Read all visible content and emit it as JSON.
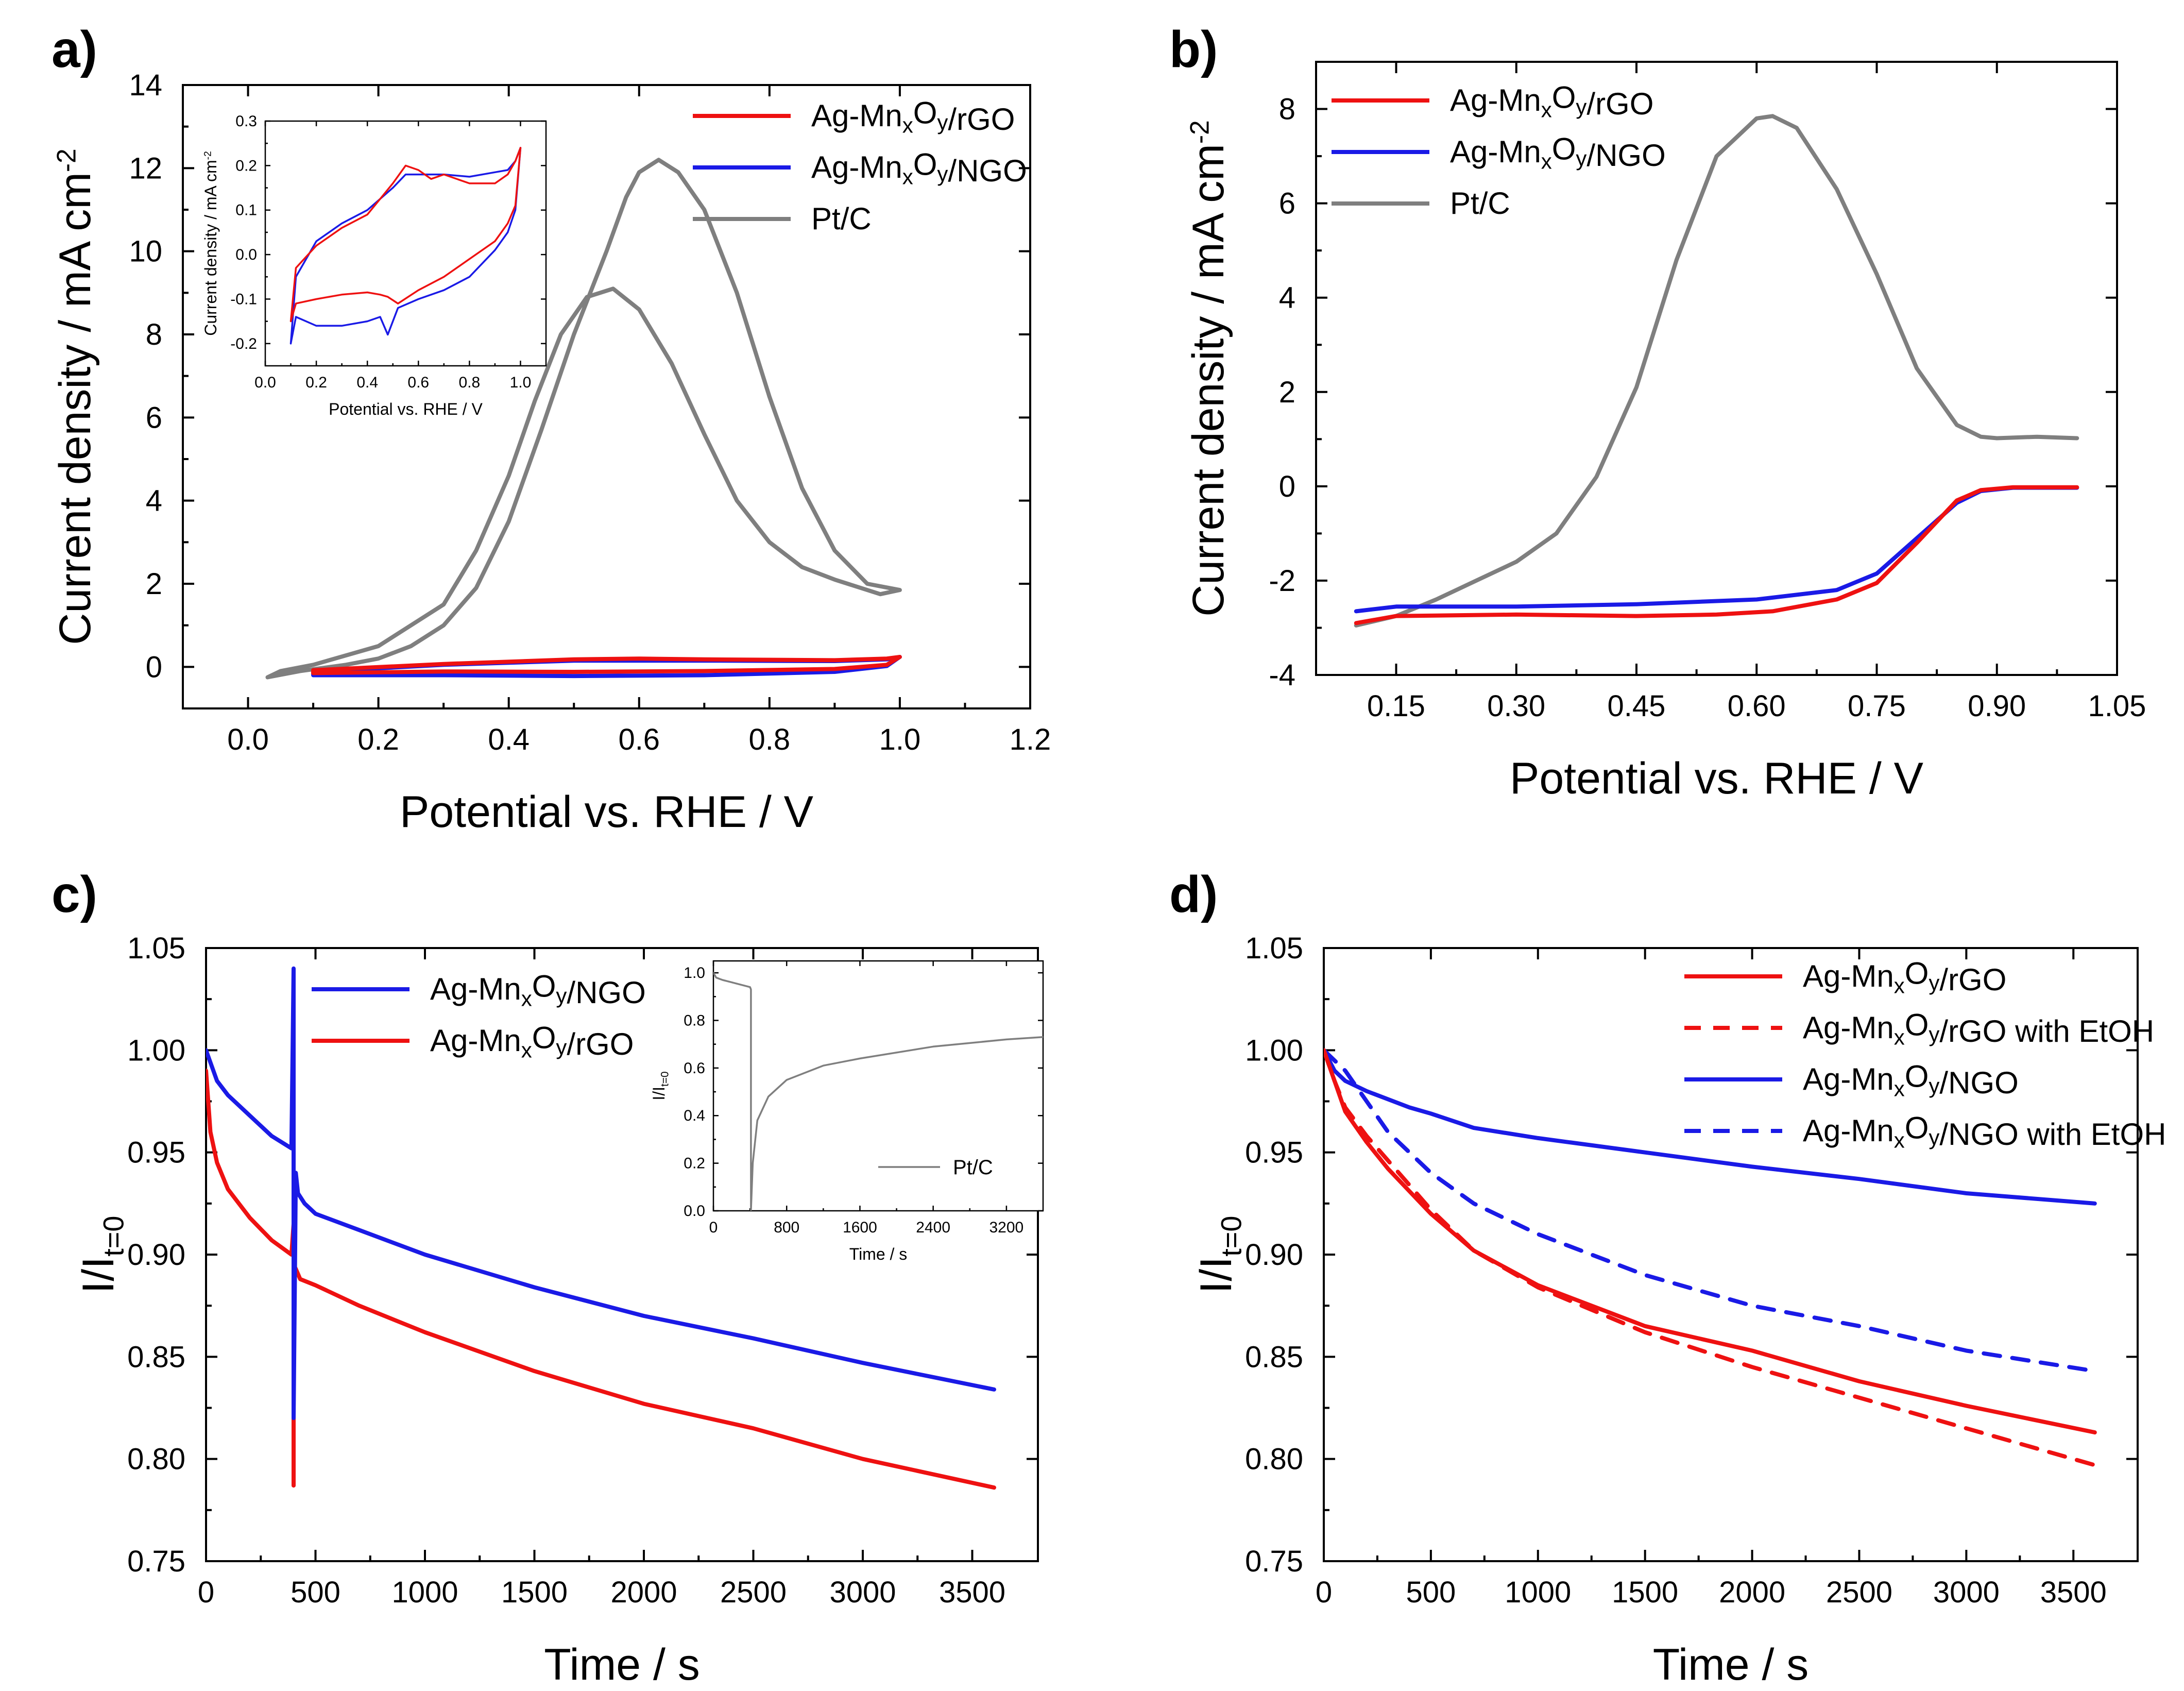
{
  "colors": {
    "red": "#ee1111",
    "blue": "#1a1ae6",
    "gray": "#7f7f7f",
    "axis": "#000000"
  },
  "chart_data": [
    {
      "id": "a",
      "panel_label": "a)",
      "type": "line",
      "xlabel": "Potential vs. RHE  /  V",
      "ylabel": "Current density  /  mA cm",
      "ylabel_sup": "-2",
      "xlim": [
        -0.1,
        1.2
      ],
      "ylim": [
        -1,
        14
      ],
      "xticks": [
        "0.0",
        "0.2",
        "0.4",
        "0.6",
        "0.8",
        "1.0",
        "1.2"
      ],
      "yticks": [
        "0",
        "2",
        "4",
        "6",
        "8",
        "10",
        "12",
        "14"
      ],
      "legend": [
        {
          "label": "Ag-MnxOy/rGO",
          "color": "red",
          "dash": "solid"
        },
        {
          "label": "Ag-MnxOy/NGO",
          "color": "blue",
          "dash": "solid"
        },
        {
          "label": "Pt/C",
          "color": "gray",
          "dash": "solid"
        }
      ],
      "series": [
        {
          "name": "Pt/C",
          "color": "gray",
          "dash": "solid",
          "closed": true,
          "x": [
            0.03,
            0.08,
            0.15,
            0.2,
            0.25,
            0.3,
            0.35,
            0.4,
            0.45,
            0.5,
            0.55,
            0.58,
            0.6,
            0.63,
            0.66,
            0.7,
            0.75,
            0.8,
            0.85,
            0.9,
            0.95,
            1.0,
            0.97,
            0.9,
            0.85,
            0.8,
            0.75,
            0.7,
            0.65,
            0.6,
            0.56,
            0.52,
            0.48,
            0.44,
            0.4,
            0.35,
            0.3,
            0.2,
            0.1,
            0.05,
            0.03
          ],
          "y": [
            -0.25,
            -0.1,
            0.05,
            0.2,
            0.5,
            1.0,
            1.9,
            3.5,
            5.7,
            8.0,
            10.0,
            11.3,
            11.9,
            12.2,
            11.9,
            11.0,
            9.0,
            6.5,
            4.3,
            2.8,
            2.0,
            1.85,
            1.75,
            2.1,
            2.4,
            3.0,
            4.0,
            5.6,
            7.3,
            8.6,
            9.1,
            8.9,
            8.0,
            6.4,
            4.6,
            2.8,
            1.5,
            0.5,
            0.05,
            -0.1,
            -0.25
          ]
        },
        {
          "name": "Ag-MnxOy/NGO",
          "color": "blue",
          "dash": "solid",
          "closed": true,
          "x": [
            0.1,
            0.3,
            0.5,
            0.7,
            0.9,
            0.98,
            1.0,
            0.98,
            0.9,
            0.7,
            0.5,
            0.3,
            0.1
          ],
          "y": [
            -0.12,
            0.05,
            0.15,
            0.15,
            0.14,
            0.18,
            0.24,
            0.02,
            -0.12,
            -0.2,
            -0.22,
            -0.2,
            -0.2
          ]
        },
        {
          "name": "Ag-MnxOy/rGO",
          "color": "red",
          "dash": "solid",
          "closed": true,
          "x": [
            0.1,
            0.3,
            0.5,
            0.6,
            0.7,
            0.9,
            0.98,
            1.0,
            0.98,
            0.9,
            0.7,
            0.5,
            0.3,
            0.1
          ],
          "y": [
            -0.08,
            0.07,
            0.18,
            0.2,
            0.18,
            0.16,
            0.2,
            0.24,
            0.05,
            -0.05,
            -0.1,
            -0.12,
            -0.11,
            -0.15
          ]
        }
      ],
      "inset": {
        "xlabel": "Potential vs. RHE  /  V",
        "ylabel": "Current density  /  mA cm",
        "ylabel_sup": "-2",
        "xlim": [
          0.0,
          1.1
        ],
        "ylim": [
          -0.25,
          0.3
        ],
        "xticks": [
          "0.0",
          "0.2",
          "0.4",
          "0.6",
          "0.8",
          "1.0"
        ],
        "yticks": [
          "-0.2",
          "-0.1",
          "0.0",
          "0.1",
          "0.2",
          "0.3"
        ],
        "series": [
          {
            "name": "Ag-MnxOy/NGO",
            "color": "blue",
            "dash": "solid",
            "closed": true,
            "x": [
              0.1,
              0.12,
              0.2,
              0.3,
              0.4,
              0.5,
              0.55,
              0.6,
              0.65,
              0.7,
              0.8,
              0.9,
              0.95,
              0.98,
              1.0,
              0.98,
              0.95,
              0.9,
              0.8,
              0.7,
              0.6,
              0.52,
              0.48,
              0.45,
              0.4,
              0.3,
              0.2,
              0.12,
              0.1
            ],
            "y": [
              -0.2,
              -0.05,
              0.03,
              0.07,
              0.1,
              0.15,
              0.18,
              0.18,
              0.18,
              0.18,
              0.175,
              0.185,
              0.19,
              0.21,
              0.24,
              0.1,
              0.05,
              0.01,
              -0.05,
              -0.08,
              -0.1,
              -0.12,
              -0.18,
              -0.14,
              -0.15,
              -0.16,
              -0.16,
              -0.14,
              -0.2
            ]
          },
          {
            "name": "Ag-MnxOy/rGO",
            "color": "red",
            "dash": "solid",
            "closed": true,
            "x": [
              0.1,
              0.12,
              0.2,
              0.3,
              0.4,
              0.5,
              0.55,
              0.6,
              0.65,
              0.7,
              0.8,
              0.9,
              0.95,
              0.98,
              1.0,
              0.98,
              0.95,
              0.9,
              0.8,
              0.7,
              0.6,
              0.52,
              0.48,
              0.45,
              0.4,
              0.3,
              0.2,
              0.12,
              0.1
            ],
            "y": [
              -0.15,
              -0.03,
              0.02,
              0.06,
              0.09,
              0.16,
              0.2,
              0.19,
              0.17,
              0.18,
              0.16,
              0.16,
              0.18,
              0.21,
              0.24,
              0.11,
              0.07,
              0.03,
              -0.01,
              -0.05,
              -0.08,
              -0.11,
              -0.095,
              -0.09,
              -0.085,
              -0.09,
              -0.1,
              -0.11,
              -0.15
            ]
          }
        ]
      }
    },
    {
      "id": "b",
      "panel_label": "b)",
      "type": "line",
      "xlabel": "Potential vs. RHE  /  V",
      "ylabel": "Current density  /  mA cm",
      "ylabel_sup": "-2",
      "xlim": [
        0.05,
        1.05
      ],
      "ylim": [
        -4,
        9
      ],
      "xticks": [
        "0.15",
        "0.30",
        "0.45",
        "0.60",
        "0.75",
        "0.90",
        "1.05"
      ],
      "yticks": [
        "-4",
        "-2",
        "0",
        "2",
        "4",
        "6",
        "8"
      ],
      "legend": [
        {
          "label": "Ag-MnxOy/rGO",
          "color": "red",
          "dash": "solid"
        },
        {
          "label": "Ag-MnxOy/NGO",
          "color": "blue",
          "dash": "solid"
        },
        {
          "label": "Pt/C",
          "color": "gray",
          "dash": "solid"
        }
      ],
      "series": [
        {
          "name": "Pt/C",
          "color": "gray",
          "dash": "solid",
          "x": [
            0.1,
            0.15,
            0.2,
            0.25,
            0.3,
            0.35,
            0.4,
            0.45,
            0.5,
            0.55,
            0.6,
            0.62,
            0.65,
            0.7,
            0.75,
            0.8,
            0.85,
            0.88,
            0.9,
            0.95,
            1.0
          ],
          "y": [
            -2.95,
            -2.75,
            -2.4,
            -2.0,
            -1.6,
            -1.0,
            0.2,
            2.1,
            4.8,
            7.0,
            7.8,
            7.85,
            7.6,
            6.3,
            4.5,
            2.5,
            1.3,
            1.05,
            1.02,
            1.05,
            1.02
          ]
        },
        {
          "name": "Ag-MnxOy/NGO",
          "color": "blue",
          "dash": "solid",
          "x": [
            0.1,
            0.15,
            0.3,
            0.45,
            0.6,
            0.7,
            0.75,
            0.8,
            0.85,
            0.88,
            0.92,
            1.0
          ],
          "y": [
            -2.65,
            -2.55,
            -2.55,
            -2.5,
            -2.4,
            -2.2,
            -1.85,
            -1.1,
            -0.35,
            -0.1,
            -0.03,
            -0.03
          ]
        },
        {
          "name": "Ag-MnxOy/rGO",
          "color": "red",
          "dash": "solid",
          "x": [
            0.1,
            0.15,
            0.3,
            0.45,
            0.55,
            0.62,
            0.7,
            0.75,
            0.8,
            0.85,
            0.88,
            0.92,
            1.0
          ],
          "y": [
            -2.9,
            -2.75,
            -2.72,
            -2.75,
            -2.72,
            -2.65,
            -2.4,
            -2.05,
            -1.2,
            -0.3,
            -0.08,
            -0.02,
            -0.02
          ]
        }
      ]
    },
    {
      "id": "c",
      "panel_label": "c)",
      "type": "line",
      "xlabel": "Time  /  s",
      "ylabel": "I/I",
      "ylabel_sub": "t=0",
      "xlim": [
        0,
        3800
      ],
      "ylim": [
        0.75,
        1.05
      ],
      "xticks": [
        "0",
        "500",
        "1000",
        "1500",
        "2000",
        "2500",
        "3000",
        "3500"
      ],
      "yticks": [
        "0.75",
        "0.80",
        "0.85",
        "0.90",
        "0.95",
        "1.00",
        "1.05"
      ],
      "legend": [
        {
          "label": "Ag-MnxOy/NGO",
          "color": "blue",
          "dash": "solid"
        },
        {
          "label": "Ag-MnxOy/rGO",
          "color": "red",
          "dash": "solid"
        }
      ],
      "series": [
        {
          "name": "Ag-MnxOy/rGO",
          "color": "red",
          "dash": "solid",
          "x": [
            0,
            20,
            50,
            100,
            200,
            300,
            390,
            400,
            400,
            400,
            410,
            430,
            500,
            700,
            1000,
            1500,
            2000,
            2500,
            3000,
            3600
          ],
          "y": [
            0.99,
            0.96,
            0.945,
            0.932,
            0.918,
            0.907,
            0.9,
            0.915,
            0.787,
            0.895,
            0.893,
            0.888,
            0.885,
            0.875,
            0.862,
            0.843,
            0.827,
            0.815,
            0.8,
            0.786
          ]
        },
        {
          "name": "Ag-MnxOy/NGO",
          "color": "blue",
          "dash": "solid",
          "x": [
            0,
            50,
            100,
            200,
            300,
            390,
            400,
            400,
            410,
            420,
            450,
            500,
            700,
            1000,
            1500,
            2000,
            2500,
            3000,
            3600
          ],
          "y": [
            1.0,
            0.985,
            0.978,
            0.968,
            0.958,
            0.952,
            1.04,
            0.82,
            0.94,
            0.93,
            0.925,
            0.92,
            0.912,
            0.9,
            0.884,
            0.87,
            0.859,
            0.847,
            0.834
          ]
        }
      ],
      "inset": {
        "xlabel": "Time  /  s",
        "ylabel": "I/I",
        "ylabel_sub": "t=0",
        "xlim": [
          0,
          3600
        ],
        "ylim": [
          0,
          1.05
        ],
        "xticks": [
          "0",
          "800",
          "1600",
          "2400",
          "3200"
        ],
        "yticks": [
          "0.0",
          "0.2",
          "0.4",
          "0.6",
          "0.8",
          "1.0"
        ],
        "legend": "Pt/C",
        "series": [
          {
            "name": "Pt/C",
            "color": "gray",
            "dash": "solid",
            "x": [
              0,
              30,
              100,
              200,
              300,
              400,
              410,
              410,
              430,
              480,
              600,
              800,
              1200,
              1600,
              2400,
              3200,
              3600
            ],
            "y": [
              1.0,
              0.98,
              0.97,
              0.96,
              0.95,
              0.94,
              0.93,
              0.0,
              0.2,
              0.38,
              0.48,
              0.55,
              0.61,
              0.64,
              0.69,
              0.72,
              0.73
            ]
          }
        ]
      }
    },
    {
      "id": "d",
      "panel_label": "d)",
      "type": "line",
      "xlabel": "Time  /  s",
      "ylabel": "I/I",
      "ylabel_sub": "t=0",
      "xlim": [
        0,
        3800
      ],
      "ylim": [
        0.75,
        1.05
      ],
      "xticks": [
        "0",
        "500",
        "1000",
        "1500",
        "2000",
        "2500",
        "3000",
        "3500"
      ],
      "yticks": [
        "0.75",
        "0.80",
        "0.85",
        "0.90",
        "0.95",
        "1.00",
        "1.05"
      ],
      "legend": [
        {
          "label": "Ag-MnxOy/rGO",
          "color": "red",
          "dash": "solid"
        },
        {
          "label": "Ag-MnxOy/rGO with EtOH",
          "color": "red",
          "dash": "dashed"
        },
        {
          "label": "Ag-MnxOy/NGO",
          "color": "blue",
          "dash": "solid"
        },
        {
          "label": "Ag-MnxOy/NGO with EtOH",
          "color": "blue",
          "dash": "dashed"
        }
      ],
      "series": [
        {
          "name": "Ag-MnxOy/NGO",
          "color": "blue",
          "dash": "solid",
          "x": [
            0,
            50,
            100,
            200,
            400,
            500,
            700,
            1000,
            1500,
            2000,
            2500,
            3000,
            3600
          ],
          "y": [
            1.0,
            0.99,
            0.985,
            0.98,
            0.972,
            0.969,
            0.962,
            0.957,
            0.95,
            0.943,
            0.937,
            0.93,
            0.925
          ]
        },
        {
          "name": "Ag-MnxOy/NGO with EtOH",
          "color": "blue",
          "dash": "dashed",
          "x": [
            0,
            50,
            100,
            200,
            300,
            500,
            700,
            1000,
            1500,
            2000,
            2500,
            3000,
            3600
          ],
          "y": [
            1.0,
            0.995,
            0.99,
            0.975,
            0.96,
            0.94,
            0.925,
            0.91,
            0.89,
            0.875,
            0.865,
            0.853,
            0.843
          ]
        },
        {
          "name": "Ag-MnxOy/rGO",
          "color": "red",
          "dash": "solid",
          "x": [
            0,
            50,
            100,
            200,
            300,
            500,
            700,
            1000,
            1500,
            2000,
            2500,
            3000,
            3600
          ],
          "y": [
            1.0,
            0.985,
            0.97,
            0.955,
            0.942,
            0.92,
            0.902,
            0.885,
            0.865,
            0.853,
            0.838,
            0.826,
            0.813
          ]
        },
        {
          "name": "Ag-MnxOy/rGO with EtOH",
          "color": "red",
          "dash": "dashed",
          "x": [
            0,
            50,
            100,
            200,
            300,
            500,
            700,
            1000,
            1500,
            2000,
            2500,
            3000,
            3600
          ],
          "y": [
            1.0,
            0.985,
            0.972,
            0.958,
            0.946,
            0.922,
            0.902,
            0.884,
            0.862,
            0.845,
            0.83,
            0.815,
            0.797
          ]
        }
      ]
    }
  ]
}
